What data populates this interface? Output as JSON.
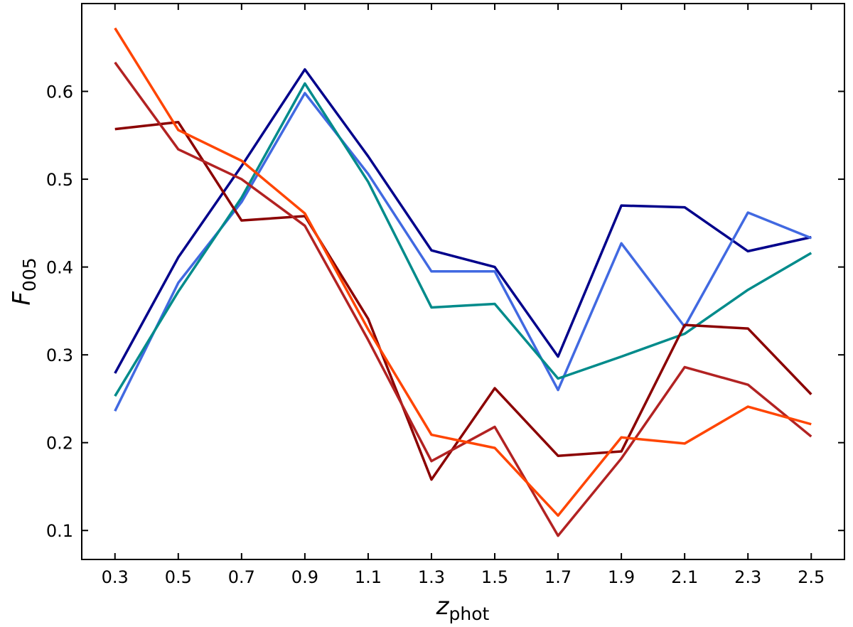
{
  "chart_data": {
    "type": "line",
    "xlabel": "z",
    "xlabel_sub": "phot",
    "ylabel": "F",
    "ylabel_sub": "005",
    "x": [
      0.3,
      0.5,
      0.7,
      0.9,
      1.1,
      1.3,
      1.5,
      1.7,
      1.9,
      2.1,
      2.3,
      2.5
    ],
    "xlim": [
      0.195,
      2.605
    ],
    "xticks": [
      0.3,
      0.5,
      0.7,
      0.9,
      1.1,
      1.3,
      1.5,
      1.7,
      1.9,
      2.1,
      2.3,
      2.5
    ],
    "ylim": [
      0.067,
      0.7
    ],
    "yticks": [
      0.1,
      0.2,
      0.3,
      0.4,
      0.5,
      0.6
    ],
    "grid": false,
    "series": [
      {
        "color": "#00008b",
        "values": [
          0.279,
          0.411,
          0.515,
          0.625,
          0.526,
          0.419,
          0.4,
          0.298,
          0.47,
          0.468,
          0.418,
          0.434
        ]
      },
      {
        "color": "#4169e1",
        "values": [
          0.236,
          0.382,
          0.474,
          0.598,
          0.506,
          0.395,
          0.395,
          0.26,
          0.427,
          0.332,
          0.462,
          0.433
        ]
      },
      {
        "color": "#008b8b",
        "values": [
          0.253,
          0.372,
          0.479,
          0.609,
          0.497,
          0.354,
          0.358,
          0.273,
          0.298,
          0.324,
          0.374,
          0.416
        ]
      },
      {
        "color": "#8b0000",
        "values": [
          0.557,
          0.565,
          0.453,
          0.458,
          0.341,
          0.158,
          0.262,
          0.185,
          0.19,
          0.334,
          0.33,
          0.255
        ]
      },
      {
        "color": "#b22222",
        "values": [
          0.633,
          0.534,
          0.5,
          0.447,
          0.317,
          0.179,
          0.218,
          0.094,
          0.182,
          0.286,
          0.266,
          0.207
        ]
      },
      {
        "color": "#ff4500",
        "values": [
          0.672,
          0.556,
          0.521,
          0.461,
          0.329,
          0.209,
          0.194,
          0.117,
          0.206,
          0.199,
          0.241,
          0.221
        ]
      }
    ]
  }
}
